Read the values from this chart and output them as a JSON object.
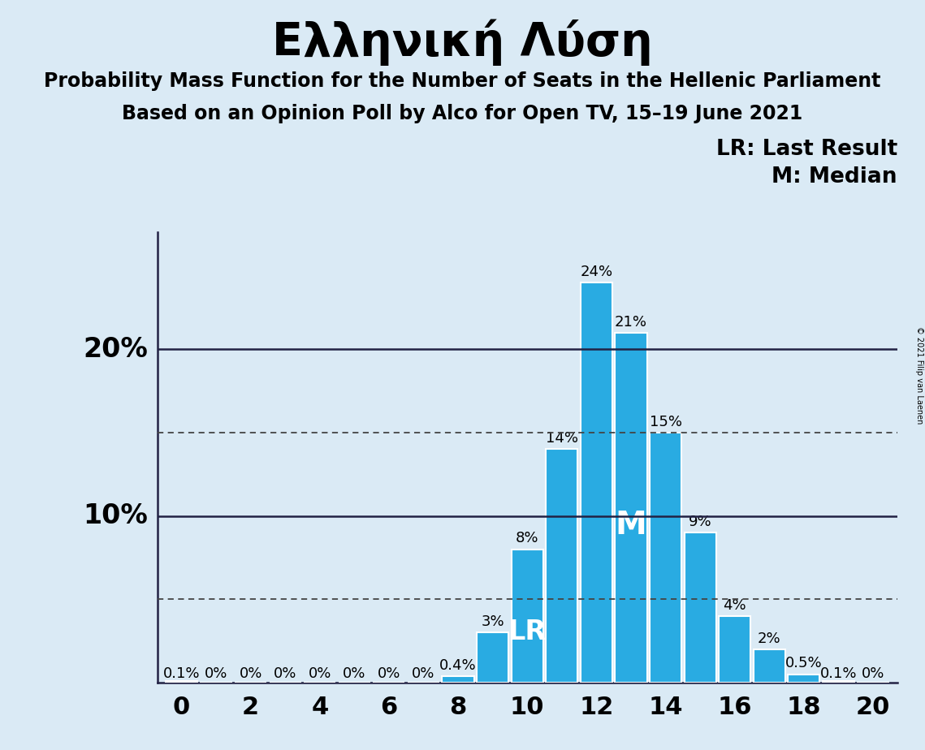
{
  "title": "Ελληνική Λύση",
  "subtitle1": "Probability Mass Function for the Number of Seats in the Hellenic Parliament",
  "subtitle2": "Based on an Opinion Poll by Alco for Open TV, 15–19 June 2021",
  "copyright": "© 2021 Filip van Laenen",
  "legend1": "LR: Last Result",
  "legend2": "M: Median",
  "background_color": "#daeaf5",
  "bar_color": "#29abe2",
  "bar_edge_color": "#ffffff",
  "categories": [
    0,
    1,
    2,
    3,
    4,
    5,
    6,
    7,
    8,
    9,
    10,
    11,
    12,
    13,
    14,
    15,
    16,
    17,
    18,
    19,
    20
  ],
  "values": [
    0.001,
    0.0,
    0.0,
    0.0,
    0.0,
    0.0,
    0.0,
    0.0,
    0.004,
    0.03,
    0.08,
    0.14,
    0.24,
    0.21,
    0.15,
    0.09,
    0.04,
    0.02,
    0.005,
    0.001,
    0.0
  ],
  "labels": [
    "0.1%",
    "0%",
    "0%",
    "0%",
    "0%",
    "0%",
    "0%",
    "0%",
    "0.4%",
    "3%",
    "8%",
    "14%",
    "24%",
    "21%",
    "15%",
    "9%",
    "4%",
    "2%",
    "0.5%",
    "0.1%",
    "0%"
  ],
  "LR_seat": 10,
  "Median_seat": 13,
  "ylim": [
    0,
    0.27
  ],
  "dotted_lines": [
    0.05,
    0.15
  ],
  "solid_lines": [
    0.1,
    0.2
  ],
  "title_fontsize": 40,
  "subtitle_fontsize": 17,
  "bar_label_fontsize": 13,
  "axis_tick_fontsize": 22,
  "ytick_fontsize": 24,
  "legend_fontsize": 19,
  "LR_fontsize": 24,
  "M_fontsize": 28,
  "copyright_fontsize": 7
}
